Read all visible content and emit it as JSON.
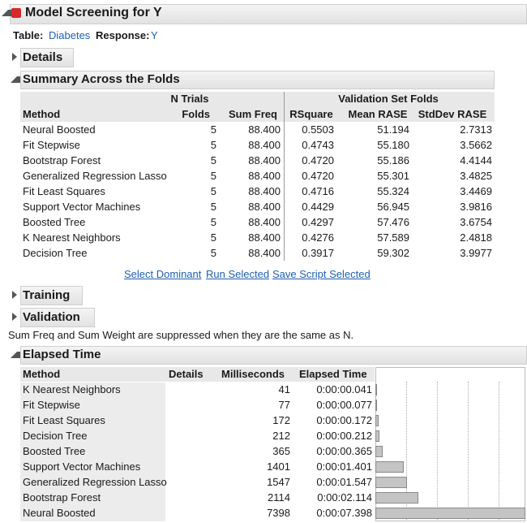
{
  "header": {
    "title": "Model Screening for Y",
    "table_label": "Table:",
    "table_value": "Diabetes",
    "response_label": "Response:",
    "response_value": "Y"
  },
  "details": {
    "title": "Details"
  },
  "summary": {
    "title": "Summary Across the Folds",
    "group_headers": [
      "N Trials",
      "Validation Set Folds"
    ],
    "columns": [
      "Method",
      "Folds",
      "Sum Freq",
      "RSquare",
      "Mean RASE",
      "StdDev RASE"
    ],
    "rows": [
      [
        "Neural Boosted",
        "5",
        "88.400",
        "0.5503",
        "51.194",
        "2.7313"
      ],
      [
        "Fit Stepwise",
        "5",
        "88.400",
        "0.4743",
        "55.180",
        "3.5662"
      ],
      [
        "Bootstrap Forest",
        "5",
        "88.400",
        "0.4720",
        "55.186",
        "4.4144"
      ],
      [
        "Generalized Regression Lasso",
        "5",
        "88.400",
        "0.4720",
        "55.301",
        "3.4825"
      ],
      [
        "Fit Least Squares",
        "5",
        "88.400",
        "0.4716",
        "55.324",
        "3.4469"
      ],
      [
        "Support Vector Machines",
        "5",
        "88.400",
        "0.4429",
        "56.945",
        "3.9816"
      ],
      [
        "Boosted Tree",
        "5",
        "88.400",
        "0.4297",
        "57.476",
        "3.6754"
      ],
      [
        "K Nearest Neighbors",
        "5",
        "88.400",
        "0.4276",
        "57.589",
        "2.4818"
      ],
      [
        "Decision Tree",
        "5",
        "88.400",
        "0.3917",
        "59.302",
        "3.9977"
      ]
    ]
  },
  "links": [
    "Select Dominant",
    "Run Selected",
    "Save Script Selected"
  ],
  "training": {
    "title": "Training"
  },
  "validation": {
    "title": "Validation"
  },
  "note": "Sum Freq and Sum Weight are suppressed when they are the same as N.",
  "elapsed": {
    "title": "Elapsed Time",
    "columns": [
      "Method",
      "Details",
      "Milliseconds",
      "Elapsed Time"
    ],
    "rows": [
      [
        "K Nearest Neighbors",
        41,
        "0:00:00.041"
      ],
      [
        "Fit Stepwise",
        77,
        "0:00:00.077"
      ],
      [
        "Fit Least Squares",
        172,
        "0:00:00.172"
      ],
      [
        "Decision Tree",
        212,
        "0:00:00.212"
      ],
      [
        "Boosted Tree",
        365,
        "0:00:00.365"
      ],
      [
        "Support Vector Machines",
        1401,
        "0:00:01.401"
      ],
      [
        "Generalized Regression Lasso",
        1547,
        "0:00:01.547"
      ],
      [
        "Bootstrap Forest",
        2114,
        "0:00:02.114"
      ],
      [
        "Neural Boosted",
        7398,
        "0:00:07.398"
      ]
    ]
  }
}
